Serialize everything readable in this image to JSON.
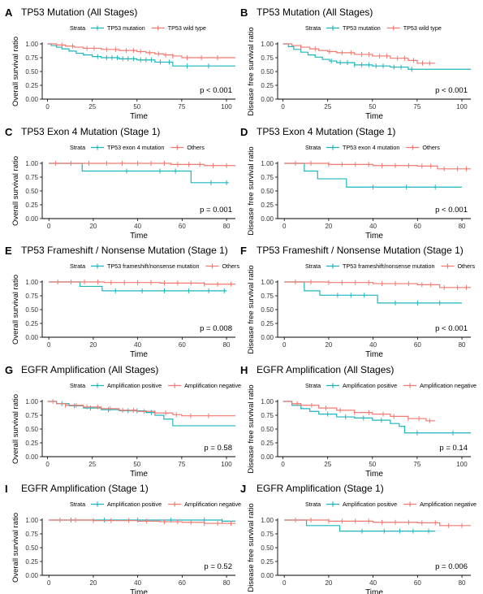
{
  "strata_label": "Strata",
  "colors": {
    "group_a": "#1fb5bf",
    "group_b": "#f07a70"
  },
  "chart_data": [
    {
      "letter": "A",
      "type": "line",
      "title": "TP53 Mutation (All Stages)",
      "xlabel": "Time",
      "ylabel": "Overall survival ratio",
      "xlim": [
        -3,
        105
      ],
      "ylim": [
        0,
        1
      ],
      "xticks": [
        0,
        25,
        50,
        75,
        100
      ],
      "yticks": [
        "0.00",
        "0.25",
        "0.50",
        "0.75",
        "1.00"
      ],
      "pvalue": "p < 0.001",
      "series": [
        {
          "name": "TP53 mutation",
          "color": "#1fb5bf",
          "x": [
            0,
            2,
            5,
            8,
            12,
            16,
            20,
            25,
            30,
            40,
            50,
            60,
            70,
            75,
            100,
            105
          ],
          "y": [
            1.0,
            0.97,
            0.94,
            0.91,
            0.87,
            0.83,
            0.8,
            0.77,
            0.75,
            0.73,
            0.71,
            0.67,
            0.6,
            0.6,
            0.6,
            0.6
          ],
          "censor": [
            28,
            33,
            36,
            39,
            42,
            45,
            48,
            52,
            55,
            58,
            63,
            68,
            78,
            90
          ]
        },
        {
          "name": "TP53 wild type",
          "color": "#f07a70",
          "x": [
            0,
            5,
            10,
            15,
            20,
            30,
            40,
            50,
            55,
            60,
            65,
            70,
            75,
            105
          ],
          "y": [
            1.0,
            0.98,
            0.96,
            0.94,
            0.92,
            0.9,
            0.88,
            0.86,
            0.84,
            0.82,
            0.8,
            0.78,
            0.75,
            0.75
          ],
          "censor": [
            8,
            14,
            22,
            26,
            33,
            38,
            44,
            48,
            52,
            57,
            62,
            66,
            70,
            78,
            86,
            95
          ]
        }
      ]
    },
    {
      "letter": "B",
      "type": "line",
      "title": "TP53 Mutation (All Stages)",
      "xlabel": "Time",
      "ylabel": "Disease free survival ratio",
      "xlim": [
        -3,
        105
      ],
      "ylim": [
        0,
        1
      ],
      "xticks": [
        0,
        25,
        50,
        75,
        100
      ],
      "yticks": [
        "0.00",
        "0.25",
        "0.50",
        "0.75",
        "1.00"
      ],
      "pvalue": "p < 0.001",
      "series": [
        {
          "name": "TP53 mutation",
          "color": "#1fb5bf",
          "x": [
            0,
            3,
            6,
            10,
            14,
            18,
            22,
            26,
            30,
            40,
            50,
            60,
            70,
            105
          ],
          "y": [
            1.0,
            0.95,
            0.9,
            0.85,
            0.8,
            0.76,
            0.72,
            0.69,
            0.66,
            0.62,
            0.6,
            0.58,
            0.54,
            0.54
          ],
          "censor": [
            27,
            32,
            36,
            40,
            44,
            48,
            52,
            56,
            62,
            66,
            72
          ]
        },
        {
          "name": "TP53 wild type",
          "color": "#f07a70",
          "x": [
            0,
            5,
            10,
            15,
            20,
            25,
            30,
            40,
            50,
            60,
            70,
            75,
            85
          ],
          "y": [
            1.0,
            0.97,
            0.94,
            0.91,
            0.88,
            0.86,
            0.84,
            0.81,
            0.78,
            0.74,
            0.7,
            0.65,
            0.65
          ],
          "censor": [
            10,
            18,
            26,
            33,
            38,
            44,
            48,
            54,
            58,
            64,
            68,
            73,
            78,
            82
          ]
        }
      ]
    },
    {
      "letter": "C",
      "type": "line",
      "title": "TP53 Exon 4 Mutation (Stage 1)",
      "xlabel": "Time",
      "ylabel": "Overall survival ratio",
      "xlim": [
        -3,
        84
      ],
      "ylim": [
        0,
        1
      ],
      "xticks": [
        0,
        20,
        40,
        60,
        80
      ],
      "yticks": [
        "0.00",
        "0.25",
        "0.50",
        "0.75",
        "1.00"
      ],
      "pvalue": "p = 0.001",
      "series": [
        {
          "name": "TP53 exon 4 mutation",
          "color": "#1fb5bf",
          "x": [
            0,
            15,
            64,
            81
          ],
          "y": [
            1.0,
            0.86,
            0.65,
            0.65
          ],
          "censor": [
            35,
            50,
            57,
            73,
            80
          ]
        },
        {
          "name": "Others",
          "color": "#f07a70",
          "x": [
            0,
            55,
            70,
            84
          ],
          "y": [
            1.0,
            0.98,
            0.96,
            0.96
          ],
          "censor": [
            3,
            10,
            18,
            26,
            33,
            40,
            46,
            52,
            58,
            63,
            68,
            74,
            80
          ]
        }
      ]
    },
    {
      "letter": "D",
      "type": "line",
      "title": "TP53 Exon 4 Mutation (Stage 1)",
      "xlabel": "Time",
      "ylabel": "Disease free survival ratio",
      "xlim": [
        -3,
        84
      ],
      "ylim": [
        0,
        1
      ],
      "xticks": [
        0,
        20,
        40,
        60,
        80
      ],
      "yticks": [
        "0.00",
        "0.25",
        "0.50",
        "0.75",
        "1.00"
      ],
      "pvalue": "p < 0.001",
      "series": [
        {
          "name": "TP53 exon 4 mutation",
          "color": "#1fb5bf",
          "x": [
            0,
            9,
            15,
            28,
            80
          ],
          "y": [
            1.0,
            0.86,
            0.72,
            0.57,
            0.57
          ],
          "censor": [
            40,
            55,
            68
          ]
        },
        {
          "name": "Others",
          "color": "#f07a70",
          "x": [
            0,
            20,
            40,
            60,
            69,
            84
          ],
          "y": [
            1.0,
            0.98,
            0.96,
            0.95,
            0.9,
            0.9
          ],
          "censor": [
            5,
            12,
            20,
            26,
            32,
            38,
            44,
            50,
            56,
            62,
            66,
            72,
            78,
            82
          ]
        }
      ]
    },
    {
      "letter": "E",
      "type": "line",
      "title": "TP53 Frameshift / Nonsense Mutation (Stage 1)",
      "xlabel": "Time",
      "ylabel": "Overall survival ratio",
      "xlim": [
        -3,
        84
      ],
      "ylim": [
        0,
        1
      ],
      "xticks": [
        0,
        20,
        40,
        60,
        80
      ],
      "yticks": [
        "0.00",
        "0.25",
        "0.50",
        "0.75",
        "1.00"
      ],
      "pvalue": "p = 0.008",
      "series": [
        {
          "name": "TP53 frameshift/nonsense mutation",
          "color": "#1fb5bf",
          "x": [
            0,
            14,
            24,
            80
          ],
          "y": [
            1.0,
            0.92,
            0.84,
            0.84
          ],
          "censor": [
            30,
            42,
            52,
            63,
            72,
            79
          ]
        },
        {
          "name": "Others",
          "color": "#f07a70",
          "x": [
            0,
            25,
            50,
            70,
            84
          ],
          "y": [
            1.0,
            0.99,
            0.98,
            0.96,
            0.96
          ],
          "censor": [
            4,
            10,
            16,
            22,
            28,
            34,
            40,
            46,
            52,
            58,
            64,
            70,
            76,
            82
          ]
        }
      ]
    },
    {
      "letter": "F",
      "type": "line",
      "title": "TP53 Frameshift / Nonsense Mutation (Stage 1)",
      "xlabel": "Time",
      "ylabel": "Disease free survival ratio",
      "xlim": [
        -3,
        84
      ],
      "ylim": [
        0,
        1
      ],
      "xticks": [
        0,
        20,
        40,
        60,
        80
      ],
      "yticks": [
        "0.00",
        "0.25",
        "0.50",
        "0.75",
        "1.00"
      ],
      "pvalue": "p < 0.001",
      "series": [
        {
          "name": "TP53 frameshift/nonsense mutation",
          "color": "#1fb5bf",
          "x": [
            0,
            9,
            16,
            42,
            80
          ],
          "y": [
            1.0,
            0.84,
            0.76,
            0.62,
            0.62
          ],
          "censor": [
            24,
            30,
            36,
            50,
            60,
            70
          ]
        },
        {
          "name": "Others",
          "color": "#f07a70",
          "x": [
            0,
            20,
            40,
            60,
            70,
            84
          ],
          "y": [
            1.0,
            0.99,
            0.97,
            0.95,
            0.9,
            0.9
          ],
          "censor": [
            5,
            12,
            20,
            26,
            32,
            38,
            44,
            50,
            56,
            62,
            66,
            72,
            78,
            82
          ]
        }
      ]
    },
    {
      "letter": "G",
      "type": "line",
      "title": "EGFR Amplification (All Stages)",
      "xlabel": "Time",
      "ylabel": "Overall survival ratio",
      "xlim": [
        -3,
        105
      ],
      "ylim": [
        0,
        1
      ],
      "xticks": [
        0,
        25,
        50,
        75,
        100
      ],
      "yticks": [
        "0.00",
        "0.25",
        "0.50",
        "0.75",
        "1.00"
      ],
      "pvalue": "p = 0.58",
      "series": [
        {
          "name": "Amplification positive",
          "color": "#1fb5bf",
          "x": [
            0,
            5,
            12,
            20,
            30,
            40,
            55,
            60,
            65,
            70,
            105
          ],
          "y": [
            1.0,
            0.96,
            0.92,
            0.88,
            0.85,
            0.83,
            0.8,
            0.75,
            0.68,
            0.56,
            0.56
          ],
          "censor": [
            8,
            15,
            24,
            34,
            45,
            50,
            58
          ]
        },
        {
          "name": "Amplification negative",
          "color": "#f07a70",
          "x": [
            0,
            5,
            10,
            20,
            30,
            40,
            50,
            60,
            70,
            75,
            105
          ],
          "y": [
            1.0,
            0.96,
            0.93,
            0.9,
            0.87,
            0.84,
            0.82,
            0.79,
            0.76,
            0.74,
            0.74
          ],
          "censor": [
            3,
            10,
            16,
            22,
            28,
            35,
            42,
            48,
            54,
            60,
            66,
            72,
            80,
            90
          ]
        }
      ]
    },
    {
      "letter": "H",
      "type": "line",
      "title": "EGFR Amplification (All Stages)",
      "xlabel": "Time",
      "ylabel": "Disease free survival ratio",
      "xlim": [
        -3,
        105
      ],
      "ylim": [
        0,
        1
      ],
      "xticks": [
        0,
        25,
        50,
        75,
        100
      ],
      "yticks": [
        "0.00",
        "0.25",
        "0.50",
        "0.75",
        "1.00"
      ],
      "pvalue": "p = 0.14",
      "series": [
        {
          "name": "Amplification positive",
          "color": "#1fb5bf",
          "x": [
            0,
            5,
            10,
            15,
            20,
            30,
            40,
            50,
            60,
            65,
            68,
            105
          ],
          "y": [
            1.0,
            0.93,
            0.87,
            0.82,
            0.77,
            0.72,
            0.7,
            0.66,
            0.6,
            0.55,
            0.43,
            0.43
          ],
          "censor": [
            25,
            35,
            45,
            55,
            75,
            95
          ]
        },
        {
          "name": "Amplification negative",
          "color": "#f07a70",
          "x": [
            0,
            5,
            10,
            20,
            30,
            40,
            50,
            60,
            70,
            80,
            85
          ],
          "y": [
            1.0,
            0.96,
            0.93,
            0.88,
            0.84,
            0.8,
            0.77,
            0.73,
            0.69,
            0.65,
            0.65
          ],
          "censor": [
            8,
            16,
            24,
            32,
            40,
            48,
            56,
            62,
            70,
            76,
            82
          ]
        }
      ]
    },
    {
      "letter": "I",
      "type": "line",
      "title": "EGFR Amplification (Stage 1)",
      "xlabel": "Time",
      "ylabel": "Overall survival ratio",
      "xlim": [
        -3,
        84
      ],
      "ylim": [
        0,
        1
      ],
      "xticks": [
        0,
        20,
        40,
        60,
        80
      ],
      "yticks": [
        "0.00",
        "0.25",
        "0.50",
        "0.75",
        "1.00"
      ],
      "pvalue": "p = 0.52",
      "series": [
        {
          "name": "Amplification positive",
          "color": "#1fb5bf",
          "x": [
            0,
            78,
            84
          ],
          "y": [
            1.0,
            0.98,
            0.98
          ],
          "censor": [
            10,
            25,
            40,
            55,
            70,
            78
          ]
        },
        {
          "name": "Amplification negative",
          "color": "#f07a70",
          "x": [
            0,
            20,
            40,
            50,
            60,
            70,
            84
          ],
          "y": [
            1.0,
            0.99,
            0.98,
            0.97,
            0.96,
            0.94,
            0.94
          ],
          "censor": [
            5,
            12,
            20,
            28,
            36,
            44,
            52,
            58,
            64,
            70,
            76,
            82
          ]
        }
      ]
    },
    {
      "letter": "J",
      "type": "line",
      "title": "EGFR Amplification (Stage 1)",
      "xlabel": "Time",
      "ylabel": "Disease free survival ratio",
      "xlim": [
        -3,
        84
      ],
      "ylim": [
        0,
        1
      ],
      "xticks": [
        0,
        20,
        40,
        60,
        80
      ],
      "yticks": [
        "0.00",
        "0.25",
        "0.50",
        "0.75",
        "1.00"
      ],
      "pvalue": "p = 0.006",
      "series": [
        {
          "name": "Amplification positive",
          "color": "#1fb5bf",
          "x": [
            0,
            10,
            25,
            68
          ],
          "y": [
            1.0,
            0.9,
            0.8,
            0.8
          ],
          "censor": [
            35,
            45,
            52,
            58,
            65
          ]
        },
        {
          "name": "Amplification negative",
          "color": "#f07a70",
          "x": [
            0,
            20,
            40,
            60,
            70,
            84
          ],
          "y": [
            1.0,
            0.98,
            0.96,
            0.95,
            0.9,
            0.9
          ],
          "censor": [
            5,
            12,
            20,
            26,
            32,
            38,
            44,
            50,
            56,
            62,
            68,
            74,
            80
          ]
        }
      ]
    }
  ]
}
